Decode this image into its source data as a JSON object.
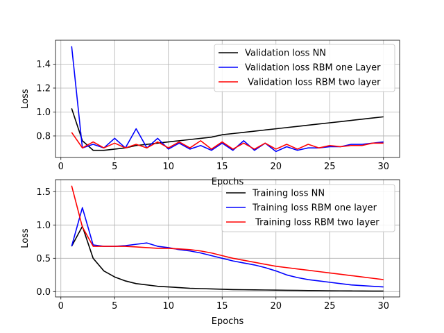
{
  "chart_data": [
    {
      "type": "line",
      "xlabel": "Epochs",
      "ylabel": "Loss",
      "xlim": [
        -0.5,
        31.5
      ],
      "ylim": [
        0.62,
        1.6
      ],
      "xticks": [
        0,
        5,
        10,
        15,
        20,
        25,
        30
      ],
      "yticks": [
        0.8,
        1.0,
        1.2,
        1.4
      ],
      "ytick_labels": [
        "0.8",
        "1.0",
        "1.2",
        "1.4"
      ],
      "grid": true,
      "legend_position": "upper right",
      "x": [
        1,
        2,
        3,
        4,
        5,
        6,
        7,
        8,
        9,
        10,
        11,
        12,
        13,
        14,
        15,
        16,
        17,
        18,
        19,
        20,
        21,
        22,
        23,
        24,
        25,
        26,
        27,
        28,
        29,
        30
      ],
      "series": [
        {
          "name": "Validation loss NN",
          "color": "#000000",
          "values": [
            1.03,
            0.76,
            0.68,
            0.68,
            0.69,
            0.7,
            0.72,
            0.73,
            0.74,
            0.75,
            0.76,
            0.77,
            0.78,
            0.79,
            0.81,
            0.82,
            0.83,
            0.84,
            0.85,
            0.86,
            0.87,
            0.88,
            0.89,
            0.9,
            0.91,
            0.92,
            0.93,
            0.94,
            0.95,
            0.96
          ]
        },
        {
          "name": "Validation loss RBM one Layer",
          "color": "#0000ff",
          "values": [
            1.55,
            0.7,
            0.73,
            0.7,
            0.78,
            0.7,
            0.86,
            0.7,
            0.78,
            0.69,
            0.74,
            0.69,
            0.72,
            0.68,
            0.74,
            0.68,
            0.76,
            0.68,
            0.74,
            0.67,
            0.71,
            0.68,
            0.7,
            0.7,
            0.71,
            0.71,
            0.73,
            0.73,
            0.74,
            0.75
          ]
        },
        {
          "name": " Validation loss RBM two layer",
          "color": "#ff0000",
          "values": [
            0.83,
            0.7,
            0.75,
            0.7,
            0.74,
            0.7,
            0.73,
            0.7,
            0.75,
            0.7,
            0.75,
            0.7,
            0.76,
            0.69,
            0.75,
            0.69,
            0.74,
            0.69,
            0.74,
            0.69,
            0.73,
            0.69,
            0.73,
            0.7,
            0.72,
            0.71,
            0.72,
            0.72,
            0.74,
            0.74
          ]
        }
      ]
    },
    {
      "type": "line",
      "xlabel": "Epochs",
      "ylabel": "Loss",
      "xlim": [
        -0.5,
        31.5
      ],
      "ylim": [
        -0.08,
        1.68
      ],
      "xticks": [
        0,
        5,
        10,
        15,
        20,
        25,
        30
      ],
      "yticks": [
        0.0,
        0.5,
        1.0,
        1.5
      ],
      "ytick_labels": [
        "0.0",
        "0.5",
        "1.0",
        "1.5"
      ],
      "grid": true,
      "legend_position": "upper right",
      "x": [
        1,
        2,
        3,
        4,
        5,
        6,
        7,
        8,
        9,
        10,
        11,
        12,
        13,
        14,
        15,
        16,
        17,
        18,
        19,
        20,
        21,
        22,
        23,
        24,
        25,
        26,
        27,
        28,
        29,
        30
      ],
      "series": [
        {
          "name": "Training loss NN",
          "color": "#000000",
          "values": [
            0.68,
            0.98,
            0.5,
            0.31,
            0.22,
            0.16,
            0.12,
            0.1,
            0.08,
            0.07,
            0.06,
            0.05,
            0.045,
            0.04,
            0.035,
            0.03,
            0.028,
            0.026,
            0.024,
            0.022,
            0.02,
            0.018,
            0.016,
            0.014,
            0.012,
            0.011,
            0.01,
            0.009,
            0.008,
            0.008
          ]
        },
        {
          "name": "Training loss RBM one layer",
          "color": "#0000ff",
          "values": [
            0.68,
            1.26,
            0.7,
            0.68,
            0.68,
            0.69,
            0.71,
            0.73,
            0.68,
            0.66,
            0.63,
            0.61,
            0.58,
            0.54,
            0.5,
            0.46,
            0.43,
            0.4,
            0.36,
            0.31,
            0.25,
            0.21,
            0.18,
            0.16,
            0.14,
            0.12,
            0.1,
            0.09,
            0.08,
            0.07
          ]
        },
        {
          "name": " Training loss RBM two layer",
          "color": "#ff0000",
          "values": [
            1.59,
            0.97,
            0.68,
            0.68,
            0.68,
            0.68,
            0.67,
            0.66,
            0.65,
            0.65,
            0.64,
            0.63,
            0.61,
            0.58,
            0.54,
            0.5,
            0.47,
            0.44,
            0.41,
            0.38,
            0.36,
            0.34,
            0.32,
            0.3,
            0.28,
            0.26,
            0.24,
            0.22,
            0.2,
            0.18
          ]
        }
      ]
    }
  ]
}
